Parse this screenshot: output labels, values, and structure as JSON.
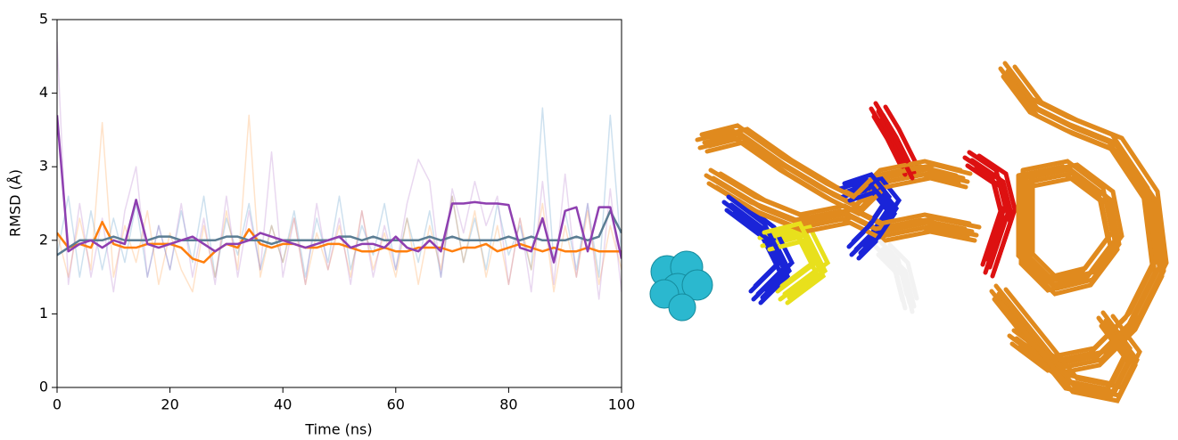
{
  "chart_data": {
    "type": "line",
    "xlabel": "Time (ns)",
    "ylabel": "RMSD (Å)",
    "x": [
      0,
      2,
      4,
      6,
      8,
      10,
      12,
      14,
      16,
      18,
      20,
      22,
      24,
      26,
      28,
      30,
      32,
      34,
      36,
      38,
      40,
      42,
      44,
      46,
      48,
      50,
      52,
      54,
      56,
      58,
      60,
      62,
      64,
      66,
      68,
      70,
      72,
      74,
      76,
      78,
      80,
      82,
      84,
      86,
      88,
      90,
      92,
      94,
      96,
      98,
      100
    ],
    "xlim": [
      0,
      100
    ],
    "xticks": [
      0,
      20,
      40,
      60,
      80,
      100
    ],
    "ylim": [
      0,
      5
    ],
    "yticks": [
      0,
      1,
      2,
      3,
      4,
      5
    ],
    "series": [
      {
        "color": "#1f77b4",
        "alpha": 0.22,
        "values": [
          1.8,
          2.6,
          1.5,
          2.4,
          1.6,
          2.3,
          1.7,
          2.5,
          1.5,
          2.2,
          1.6,
          2.4,
          1.7,
          2.6,
          1.5,
          2.3,
          1.8,
          2.5,
          1.6,
          2.2,
          1.7,
          2.4,
          1.5,
          2.3,
          1.7,
          2.6,
          1.6,
          2.2,
          1.8,
          2.5,
          1.6,
          2.3,
          1.7,
          2.4,
          1.5,
          2.6,
          1.7,
          2.3,
          1.6,
          2.5,
          1.8,
          2.2,
          1.6,
          3.8,
          1.7,
          2.4,
          1.6,
          2.5,
          1.5,
          3.7,
          1.8
        ]
      },
      {
        "color": "#ff7f0e",
        "alpha": 0.22,
        "values": [
          2.1,
          1.5,
          2.3,
          1.6,
          3.6,
          1.5,
          2.2,
          1.7,
          2.4,
          1.4,
          2.1,
          1.6,
          1.3,
          2.2,
          1.5,
          2.4,
          1.6,
          3.7,
          1.5,
          2.2,
          1.7,
          2.3,
          1.4,
          2.1,
          1.6,
          2.2,
          1.5,
          2.4,
          1.6,
          2.1,
          1.5,
          2.3,
          1.4,
          2.2,
          1.6,
          2.6,
          1.7,
          2.4,
          1.5,
          2.2,
          1.4,
          2.3,
          1.6,
          2.5,
          1.3,
          2.2,
          1.5,
          2.4,
          1.4,
          2.2,
          1.6
        ]
      },
      {
        "color": "#9b4dbb",
        "alpha": 0.22,
        "values": [
          4.7,
          1.4,
          2.5,
          1.5,
          2.3,
          1.3,
          2.4,
          3.0,
          1.5,
          2.2,
          1.6,
          2.5,
          1.5,
          2.3,
          1.4,
          2.6,
          1.5,
          2.4,
          1.6,
          3.2,
          1.5,
          2.3,
          1.4,
          2.5,
          1.6,
          2.3,
          1.4,
          2.4,
          1.5,
          2.2,
          1.6,
          2.5,
          3.1,
          2.8,
          1.5,
          2.7,
          2.1,
          2.8,
          2.2,
          2.6,
          1.4,
          2.3,
          1.3,
          2.8,
          1.4,
          2.9,
          1.5,
          2.5,
          1.2,
          2.7,
          1.3
        ]
      },
      {
        "color": "#ff7f0e",
        "alpha": 1,
        "values": [
          2.1,
          1.9,
          1.95,
          1.9,
          2.25,
          1.95,
          1.9,
          1.9,
          1.95,
          1.95,
          1.95,
          1.9,
          1.75,
          1.7,
          1.85,
          1.95,
          1.9,
          2.15,
          1.95,
          1.9,
          1.95,
          1.95,
          1.9,
          1.9,
          1.95,
          1.95,
          1.9,
          1.85,
          1.85,
          1.9,
          1.85,
          1.85,
          1.9,
          1.9,
          1.9,
          1.85,
          1.9,
          1.9,
          1.95,
          1.85,
          1.9,
          1.95,
          1.9,
          1.85,
          1.9,
          1.85,
          1.85,
          1.9,
          1.85,
          1.85,
          1.85
        ]
      },
      {
        "color": "#5b7d93",
        "alpha": 1,
        "values": [
          1.8,
          1.9,
          2.0,
          2.0,
          2.0,
          2.05,
          2.0,
          2.0,
          2.0,
          2.05,
          2.05,
          2.0,
          2.0,
          2.0,
          2.0,
          2.05,
          2.05,
          2.0,
          2.0,
          1.95,
          2.0,
          2.0,
          2.0,
          2.0,
          2.0,
          2.05,
          2.05,
          2.0,
          2.05,
          2.0,
          2.0,
          2.0,
          2.0,
          2.05,
          2.0,
          2.05,
          2.0,
          2.0,
          2.0,
          2.0,
          2.05,
          2.0,
          2.05,
          2.0,
          2.0,
          2.0,
          2.05,
          2.0,
          2.05,
          2.4,
          2.1
        ]
      },
      {
        "color": "#8e3fb0",
        "alpha": 1,
        "values": [
          3.7,
          1.85,
          1.95,
          2.0,
          1.9,
          2.0,
          1.95,
          2.55,
          1.95,
          1.9,
          1.95,
          2.0,
          2.05,
          1.95,
          1.85,
          1.95,
          1.95,
          2.0,
          2.1,
          2.05,
          2.0,
          1.95,
          1.9,
          1.95,
          2.0,
          2.05,
          1.9,
          1.95,
          1.95,
          1.9,
          2.05,
          1.9,
          1.85,
          2.0,
          1.85,
          2.5,
          2.5,
          2.52,
          2.5,
          2.5,
          2.48,
          1.9,
          1.85,
          2.3,
          1.7,
          2.4,
          2.45,
          1.85,
          2.45,
          2.45,
          1.75
        ]
      }
    ]
  }
}
